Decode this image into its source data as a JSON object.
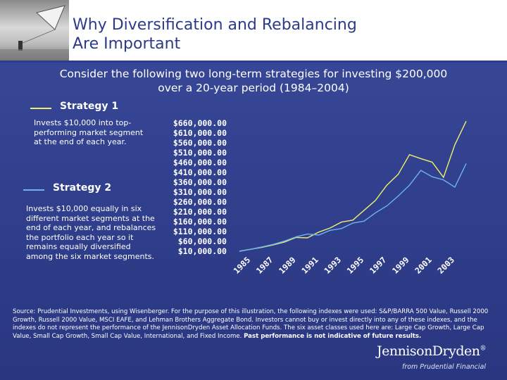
{
  "header": {
    "title_line1": "Why Diversification and Rebalancing",
    "title_line2": "Are Important"
  },
  "subtitle_line1": "Consider the following two long-term strategies for investing $200,000",
  "subtitle_line2": "over a 20-year period (1984–2004)",
  "strategy1": {
    "label": "Strategy 1",
    "color": "#eef06b",
    "description": "Invests $10,000 into top-performing market segment at the end of each year."
  },
  "strategy2": {
    "label": "Strategy 2",
    "color": "#6fb2f2",
    "description": "Invests $10,000 equally in six different market segments at the end of each year, and rebalances the portfolio each year so it remains equally diversified among the six market segments."
  },
  "chart_data": {
    "type": "line",
    "title": "",
    "xlabel": "",
    "ylabel": "",
    "x_tick_labels": [
      "1985",
      "1987",
      "1989",
      "1991",
      "1993",
      "1995",
      "1997",
      "1999",
      "2001",
      "2003"
    ],
    "y_tick_labels": [
      "$660,000.00",
      "$610,000.00",
      "$560,000.00",
      "$510,000.00",
      "$460,000.00",
      "$410,000.00",
      "$360,000.00",
      "$310,000.00",
      "$260,000.00",
      "$210,000.00",
      "$160,000.00",
      "$110,000.00",
      "$60,000.00",
      "$10,000.00"
    ],
    "ylim": [
      10000,
      660000
    ],
    "x": [
      1984,
      1985,
      1986,
      1987,
      1988,
      1989,
      1990,
      1991,
      1992,
      1993,
      1994,
      1995,
      1996,
      1997,
      1998,
      1999,
      2000,
      2001,
      2002,
      2003,
      2004
    ],
    "series": [
      {
        "name": "Strategy 1",
        "color": "#eef06b",
        "values": [
          10000,
          20000,
          30000,
          42000,
          57000,
          80000,
          78000,
          107000,
          128000,
          158000,
          168000,
          218000,
          268000,
          345000,
          400000,
          500000,
          480000,
          462000,
          385000,
          550000,
          670000
        ]
      },
      {
        "name": "Strategy 2",
        "color": "#6fb2f2",
        "values": [
          10000,
          20000,
          32000,
          45000,
          62000,
          83000,
          97000,
          92000,
          116000,
          125000,
          153000,
          163000,
          205000,
          240000,
          290000,
          345000,
          420000,
          388000,
          372000,
          335000,
          455000
        ]
      }
    ]
  },
  "source": {
    "text": "Source: Prudential Investments, using Wisenberger. For the purpose of this illustration, the following indexes were used: S&P/BARRA 500 Value, Russell 2000 Growth, Russell 2000 Value, MSCI EAFE, and Lehman Brothers Aggregate Bond. Investors cannot buy or invest directly into any of these indexes, and the indexes do not represent the performance of the JennisonDryden Asset Allocation Funds. The six asset classes used here are: Large Cap Growth, Large Cap Value, Small Cap Growth, Small Cap Value, International, and Fixed Income.",
    "disclaimer": "Past performance is not indicative of future results."
  },
  "logo": {
    "name": "JennisonDryden",
    "mark": "®",
    "sub": "from Prudential Financial"
  }
}
